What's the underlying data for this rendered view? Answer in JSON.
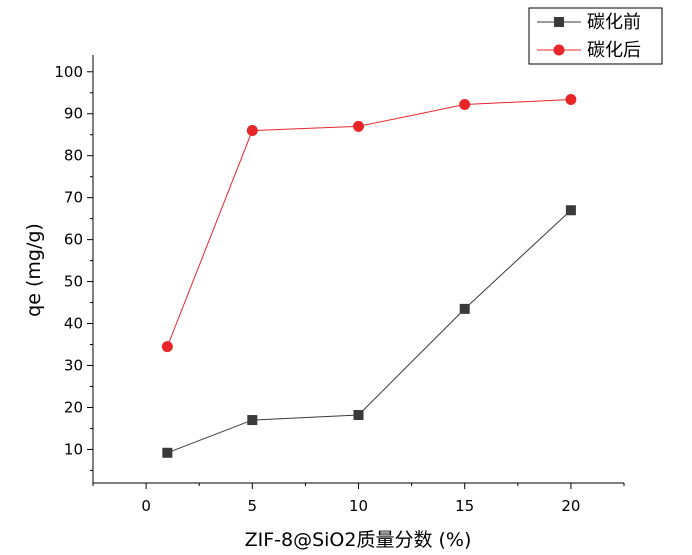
{
  "chart_data": {
    "type": "line",
    "xlabel": "ZIF-8@SiO2质量分数 (%)",
    "ylabel": "qe (mg/g)",
    "xlim": [
      -2.5,
      22.5
    ],
    "ylim": [
      2,
      104
    ],
    "xticks": [
      0,
      5,
      10,
      15,
      20
    ],
    "yticks": [
      10,
      20,
      30,
      40,
      50,
      60,
      70,
      80,
      90,
      100
    ],
    "grid": false,
    "legend_position": "top-right",
    "series": [
      {
        "name": "碳化前",
        "color": "#3a3a3a",
        "marker": "square",
        "x": [
          1,
          5,
          10,
          15,
          20
        ],
        "y": [
          9.2,
          17.0,
          18.2,
          43.5,
          67.0
        ]
      },
      {
        "name": "碳化后",
        "color": "#e8262a",
        "marker": "circle",
        "x": [
          1,
          5,
          10,
          15,
          20
        ],
        "y": [
          34.5,
          86.0,
          87.0,
          92.2,
          93.4
        ]
      }
    ]
  }
}
